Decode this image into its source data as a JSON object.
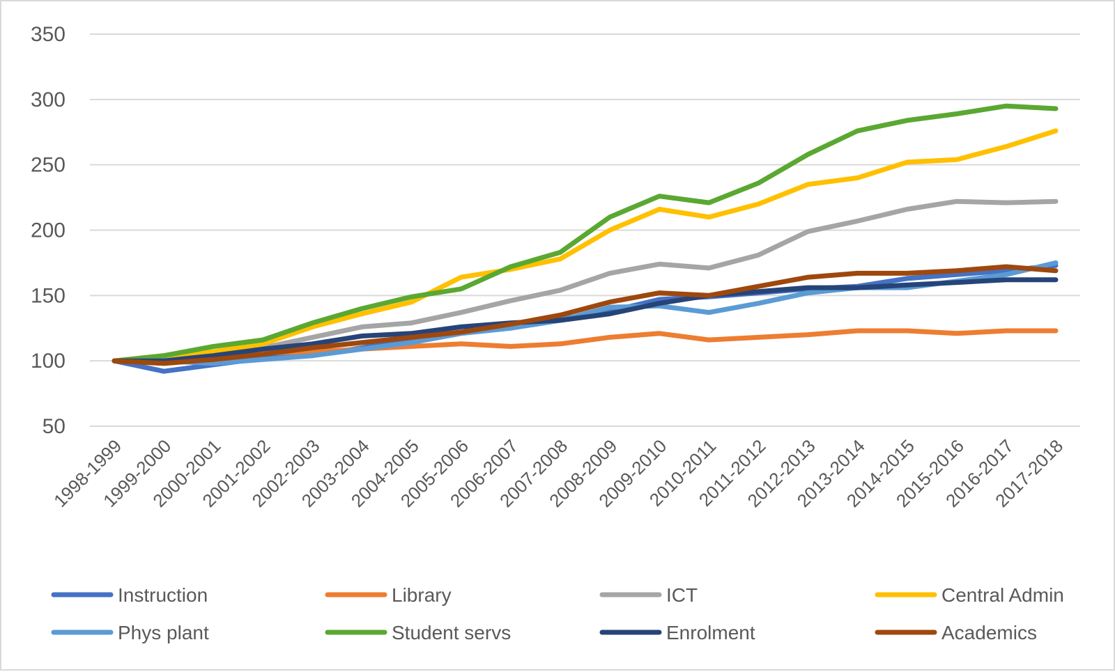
{
  "chart_data": {
    "type": "line",
    "title": "",
    "xlabel": "",
    "ylabel": "",
    "ylim": [
      50,
      350
    ],
    "yticks": [
      50,
      100,
      150,
      200,
      250,
      300,
      350
    ],
    "grid": true,
    "legend_position": "bottom",
    "categories": [
      "1998-1999",
      "1999-2000",
      "2000-2001",
      "2001-2002",
      "2002-2003",
      "2003-2004",
      "2004-2005",
      "2005-2006",
      "2006-2007",
      "2007-2008",
      "2008-2009",
      "2009-2010",
      "2010-2011",
      "2011-2012",
      "2012-2013",
      "2013-2014",
      "2014-2015",
      "2015-2016",
      "2016-2017",
      "2017-2018"
    ],
    "series": [
      {
        "name": "Instruction",
        "color": "#4472c4",
        "values": [
          100,
          92,
          97,
          102,
          104,
          110,
          117,
          122,
          127,
          132,
          138,
          147,
          149,
          152,
          155,
          157,
          163,
          166,
          169,
          173
        ]
      },
      {
        "name": "Library",
        "color": "#ed7d31",
        "values": [
          100,
          101,
          104,
          106,
          107,
          109,
          111,
          113,
          111,
          113,
          118,
          121,
          116,
          118,
          120,
          123,
          123,
          121,
          123,
          123
        ]
      },
      {
        "name": "ICT",
        "color": "#a5a5a5",
        "values": [
          100,
          103,
          106,
          110,
          118,
          126,
          129,
          137,
          146,
          154,
          167,
          174,
          171,
          181,
          199,
          207,
          216,
          222,
          221,
          222
        ]
      },
      {
        "name": "Central Admin",
        "color": "#ffc000",
        "values": [
          100,
          104,
          107,
          113,
          126,
          136,
          145,
          164,
          170,
          178,
          200,
          216,
          210,
          220,
          235,
          240,
          252,
          254,
          264,
          276
        ]
      },
      {
        "name": "Phys plant",
        "color": "#5b9bd5",
        "values": [
          100,
          100,
          98,
          101,
          104,
          109,
          114,
          121,
          125,
          131,
          141,
          142,
          137,
          144,
          152,
          156,
          156,
          161,
          166,
          175
        ]
      },
      {
        "name": "Student servs",
        "color": "#5aa832",
        "values": [
          100,
          104,
          111,
          116,
          129,
          140,
          149,
          155,
          172,
          183,
          210,
          226,
          221,
          236,
          258,
          276,
          284,
          289,
          295,
          293
        ]
      },
      {
        "name": "Enrolment",
        "color": "#264478",
        "values": [
          100,
          100,
          104,
          109,
          113,
          119,
          121,
          126,
          129,
          131,
          136,
          144,
          150,
          153,
          156,
          156,
          158,
          160,
          162,
          162
        ]
      },
      {
        "name": "Academics",
        "color": "#9e480e",
        "values": [
          100,
          98,
          101,
          105,
          110,
          114,
          118,
          122,
          128,
          135,
          145,
          152,
          150,
          157,
          164,
          167,
          167,
          169,
          172,
          169
        ]
      }
    ]
  }
}
